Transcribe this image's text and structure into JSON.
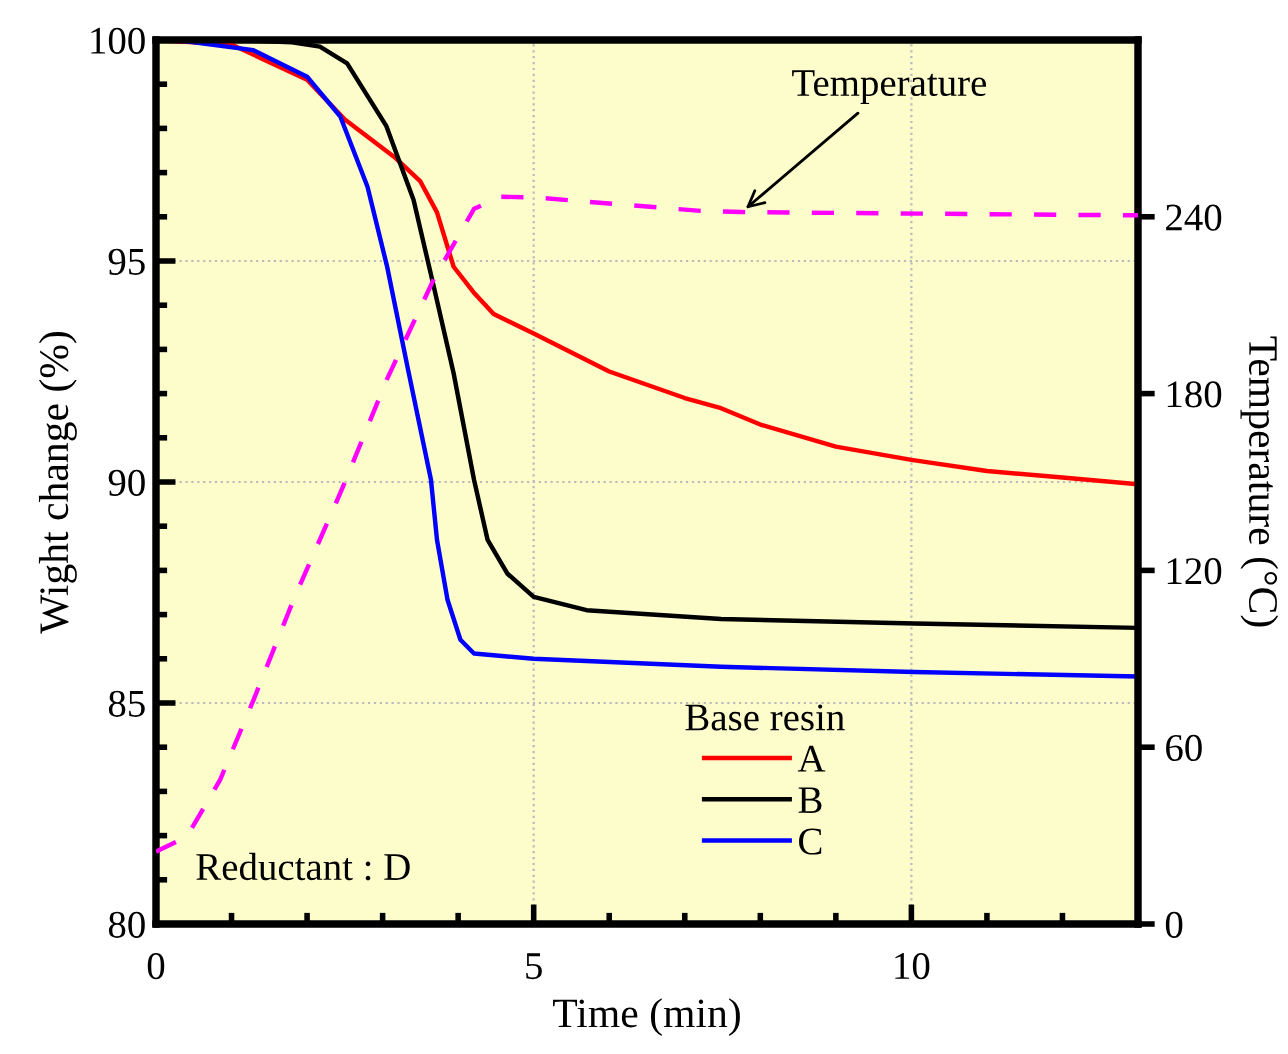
{
  "chart_data": {
    "type": "line",
    "xlabel": "Time (min)",
    "ylabel": "Wight change (%)",
    "y2label": "Temperature (°C)",
    "legend_title": "Base resin",
    "xlim": [
      0,
      13
    ],
    "ylim": [
      80,
      100
    ],
    "y2lim": [
      0,
      300
    ],
    "xticks": [
      0,
      {
        "value": 1,
        "label": null
      },
      {
        "value": 2,
        "label": null
      },
      {
        "value": 3,
        "label": null
      },
      {
        "value": 4,
        "label": null
      },
      5,
      {
        "value": 6,
        "label": null
      },
      {
        "value": 7,
        "label": null
      },
      {
        "value": 8,
        "label": null
      },
      {
        "value": 9,
        "label": null
      },
      10,
      {
        "value": 11,
        "label": null
      },
      {
        "value": 12,
        "label": null
      }
    ],
    "yticks": [
      80,
      {
        "value": 81,
        "label": null
      },
      {
        "value": 82,
        "label": null
      },
      {
        "value": 83,
        "label": null
      },
      {
        "value": 84,
        "label": null
      },
      85,
      {
        "value": 86,
        "label": null
      },
      {
        "value": 87,
        "label": null
      },
      {
        "value": 88,
        "label": null
      },
      {
        "value": 89,
        "label": null
      },
      90,
      {
        "value": 91,
        "label": null
      },
      {
        "value": 92,
        "label": null
      },
      {
        "value": 93,
        "label": null
      },
      {
        "value": 94,
        "label": null
      },
      95,
      {
        "value": 96,
        "label": null
      },
      {
        "value": 97,
        "label": null
      },
      {
        "value": 98,
        "label": null
      },
      {
        "value": 99,
        "label": null
      },
      100
    ],
    "y2ticks": [
      0,
      60,
      120,
      180,
      240
    ],
    "grid": true,
    "legend": "bottom",
    "line_style": "solid",
    "marker": "none",
    "annotations": [
      "Reductant : D",
      {
        "text": "Temperature",
        "x": 7.75,
        "y": 96.1
      }
    ],
    "series": [
      {
        "name": "A",
        "color": "#ff0000",
        "x": [
          0,
          1,
          2,
          2.5,
          3.15,
          3.5,
          3.72,
          3.94,
          4.2,
          4.47,
          5,
          6,
          7,
          7.48,
          8,
          9,
          10,
          11,
          12,
          13
        ],
        "values": [
          100,
          99.9,
          99.1,
          98.2,
          97.36,
          96.8,
          96.1,
          94.87,
          94.3,
          93.8,
          93.36,
          92.5,
          91.9,
          91.67,
          91.3,
          90.8,
          90.5,
          90.25,
          90.1,
          89.95
        ]
      },
      {
        "name": "B",
        "color": "#000000",
        "x": [
          0,
          1,
          1.8,
          2.17,
          2.53,
          3.05,
          3.41,
          3.68,
          3.94,
          4.21,
          4.39,
          4.65,
          5,
          5.7,
          7.48,
          10.04,
          13
        ],
        "values": [
          100,
          100,
          99.95,
          99.85,
          99.47,
          98.05,
          96.38,
          94.4,
          92.46,
          90.05,
          88.69,
          87.93,
          87.4,
          87.1,
          86.9,
          86.8,
          86.7
        ]
      },
      {
        "name": "C",
        "color": "#0000ff",
        "x": [
          0,
          0.4,
          1.29,
          2.0,
          2.44,
          2.8,
          3.06,
          3.33,
          3.64,
          3.72,
          3.86,
          4.03,
          4.21,
          5,
          7.48,
          10.04,
          13
        ],
        "values": [
          100,
          99.97,
          99.77,
          99.17,
          98.27,
          96.68,
          94.87,
          92.6,
          90.05,
          88.69,
          87.33,
          86.43,
          86.12,
          86.0,
          85.82,
          85.7,
          85.6
        ]
      },
      {
        "color": "#ff00ff",
        "axis": "y2",
        "line_style": "dashed",
        "x": [
          0,
          0.05,
          0.41,
          0.85,
          1.29,
          1.82,
          2.35,
          2.48,
          3.06,
          3.68,
          4.21,
          4.56,
          5.0,
          7.21,
          7.75,
          12.87,
          13
        ],
        "values": [
          24.5,
          25.2,
          29.7,
          49,
          76,
          110,
          141,
          148.7,
          185,
          219,
          242.7,
          246.8,
          246.6,
          242,
          241.6,
          240.5,
          240.5
        ]
      }
    ]
  }
}
